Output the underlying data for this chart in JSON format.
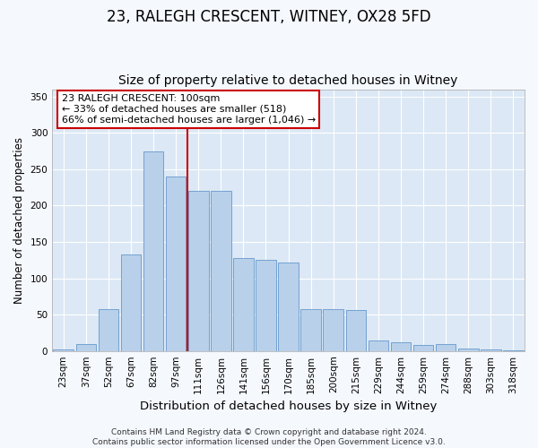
{
  "title": "23, RALEGH CRESCENT, WITNEY, OX28 5FD",
  "subtitle": "Size of property relative to detached houses in Witney",
  "xlabel": "Distribution of detached houses by size in Witney",
  "ylabel": "Number of detached properties",
  "categories": [
    "23sqm",
    "37sqm",
    "52sqm",
    "67sqm",
    "82sqm",
    "97sqm",
    "111sqm",
    "126sqm",
    "141sqm",
    "156sqm",
    "170sqm",
    "185sqm",
    "200sqm",
    "215sqm",
    "229sqm",
    "244sqm",
    "259sqm",
    "274sqm",
    "288sqm",
    "303sqm",
    "318sqm"
  ],
  "values": [
    2,
    10,
    58,
    133,
    274,
    240,
    220,
    220,
    128,
    125,
    122,
    58,
    58,
    56,
    14,
    12,
    8,
    10,
    3,
    2,
    1
  ],
  "bar_color": "#b8d0ea",
  "bar_edge_color": "#6699cc",
  "vline_color": "#cc0000",
  "annotation_text": "23 RALEGH CRESCENT: 100sqm\n← 33% of detached houses are smaller (518)\n66% of semi-detached houses are larger (1,046) →",
  "annotation_box_facecolor": "#ffffff",
  "annotation_box_edgecolor": "#cc0000",
  "ylim": [
    0,
    360
  ],
  "yticks": [
    0,
    50,
    100,
    150,
    200,
    250,
    300,
    350
  ],
  "fig_facecolor": "#f5f8fd",
  "plot_facecolor": "#dce8f5",
  "grid_color": "#ffffff",
  "footer_text": "Contains HM Land Registry data © Crown copyright and database right 2024.\nContains public sector information licensed under the Open Government Licence v3.0.",
  "title_fontsize": 12,
  "subtitle_fontsize": 10,
  "xlabel_fontsize": 9.5,
  "ylabel_fontsize": 8.5,
  "tick_fontsize": 7.5,
  "annotation_fontsize": 8,
  "footer_fontsize": 6.5
}
